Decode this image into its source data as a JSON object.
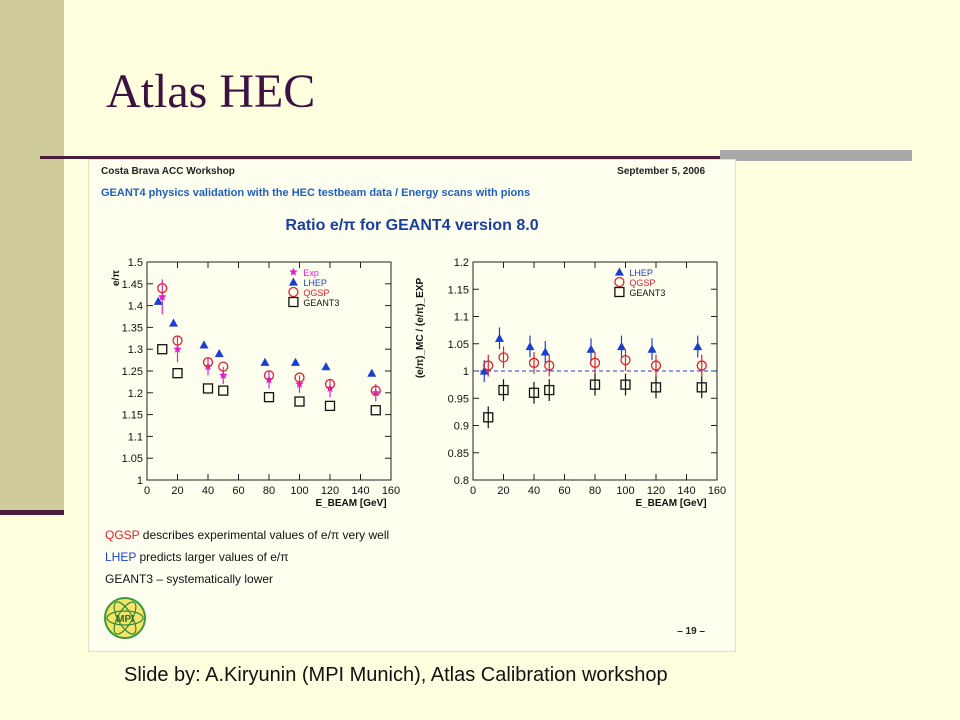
{
  "slide": {
    "title": "Atlas HEC",
    "caption": "Slide by: A.Kiryunin (MPI Munich), Atlas Calibration workshop"
  },
  "inner_slide": {
    "workshop": "Costa Brava ACC Workshop",
    "date": "September 5, 2006",
    "subtitle": "GEANT4 physics validation with the HEC testbeam data / Energy scans with pions",
    "ratio_title": "Ratio e/π for GEANT4 version 8.0",
    "page": "– 19 –",
    "logo_text": "MPI",
    "notes": [
      {
        "keyword": "QGSP",
        "rest": " describes experimental values of e/π very well",
        "color": "#E0202C"
      },
      {
        "keyword": "LHEP",
        "rest": " predicts larger values of e/π",
        "color": "#1A3FD0"
      },
      {
        "keyword": "GEANT3",
        "rest": " – systematically lower",
        "color": "#111111"
      }
    ]
  },
  "colors": {
    "exp": "#E020D0",
    "lhep": "#1A3FD0",
    "qgsp": "#E0202C",
    "geant3": "#111111",
    "background": "#FFFFE0",
    "title": "#3D1240"
  },
  "chart_data": [
    {
      "type": "scatter",
      "title": "",
      "xlabel": "E_BEAM [GeV]",
      "ylabel": "e/π",
      "xlim": [
        0,
        160
      ],
      "ylim": [
        1,
        1.5
      ],
      "xticks": [
        0,
        20,
        40,
        60,
        80,
        100,
        120,
        140,
        160
      ],
      "yticks": [
        1,
        1.05,
        1.1,
        1.15,
        1.2,
        1.25,
        1.3,
        1.35,
        1.4,
        1.45,
        1.5
      ],
      "legend_position": "top-right",
      "series": [
        {
          "name": "Exp",
          "marker": "star",
          "color": "#E020D0",
          "x": [
            10,
            20,
            40,
            50,
            80,
            100,
            120,
            150
          ],
          "y": [
            1.42,
            1.3,
            1.26,
            1.24,
            1.23,
            1.22,
            1.21,
            1.2
          ],
          "err": [
            0.04,
            0.03,
            0.02,
            0.02,
            0.02,
            0.02,
            0.02,
            0.02
          ]
        },
        {
          "name": "LHEP",
          "marker": "triangle",
          "color": "#1A3FD0",
          "x": [
            10,
            20,
            40,
            50,
            80,
            100,
            120,
            150
          ],
          "y": [
            1.41,
            1.36,
            1.31,
            1.29,
            1.27,
            1.27,
            1.26,
            1.245
          ]
        },
        {
          "name": "QGSP",
          "marker": "circle",
          "color": "#E0202C",
          "x": [
            10,
            20,
            40,
            50,
            80,
            100,
            120,
            150
          ],
          "y": [
            1.44,
            1.32,
            1.27,
            1.26,
            1.24,
            1.235,
            1.22,
            1.205
          ]
        },
        {
          "name": "GEANT3",
          "marker": "square",
          "color": "#111111",
          "x": [
            10,
            20,
            40,
            50,
            80,
            100,
            120,
            150
          ],
          "y": [
            1.3,
            1.245,
            1.21,
            1.205,
            1.19,
            1.18,
            1.17,
            1.16
          ]
        }
      ]
    },
    {
      "type": "scatter",
      "title": "",
      "xlabel": "E_BEAM [GeV]",
      "ylabel": "(e/π)_MC / (e/π)_EXP",
      "xlim": [
        0,
        160
      ],
      "ylim": [
        0.8,
        1.2
      ],
      "xticks": [
        0,
        20,
        40,
        60,
        80,
        100,
        120,
        140,
        160
      ],
      "yticks": [
        0.8,
        0.85,
        0.9,
        0.95,
        1,
        1.05,
        1.1,
        1.15,
        1.2
      ],
      "reference_line": 1,
      "legend_position": "top-right",
      "series": [
        {
          "name": "LHEP",
          "marker": "triangle",
          "color": "#1A3FD0",
          "x": [
            10,
            20,
            40,
            50,
            80,
            100,
            120,
            150
          ],
          "y": [
            1.0,
            1.06,
            1.045,
            1.035,
            1.04,
            1.045,
            1.04,
            1.045
          ],
          "err": [
            0.02,
            0.02,
            0.02,
            0.02,
            0.02,
            0.02,
            0.02,
            0.02
          ]
        },
        {
          "name": "QGSP",
          "marker": "circle",
          "color": "#E0202C",
          "x": [
            10,
            20,
            40,
            50,
            80,
            100,
            120,
            150
          ],
          "y": [
            1.01,
            1.025,
            1.015,
            1.01,
            1.015,
            1.02,
            1.01,
            1.01
          ],
          "err": [
            0.02,
            0.02,
            0.02,
            0.02,
            0.02,
            0.02,
            0.02,
            0.02
          ]
        },
        {
          "name": "GEANT3",
          "marker": "square",
          "color": "#111111",
          "x": [
            10,
            20,
            40,
            50,
            80,
            100,
            120,
            150
          ],
          "y": [
            0.915,
            0.965,
            0.96,
            0.965,
            0.975,
            0.975,
            0.97,
            0.97
          ],
          "err": [
            0.02,
            0.02,
            0.02,
            0.02,
            0.02,
            0.02,
            0.02,
            0.02
          ]
        }
      ]
    }
  ]
}
